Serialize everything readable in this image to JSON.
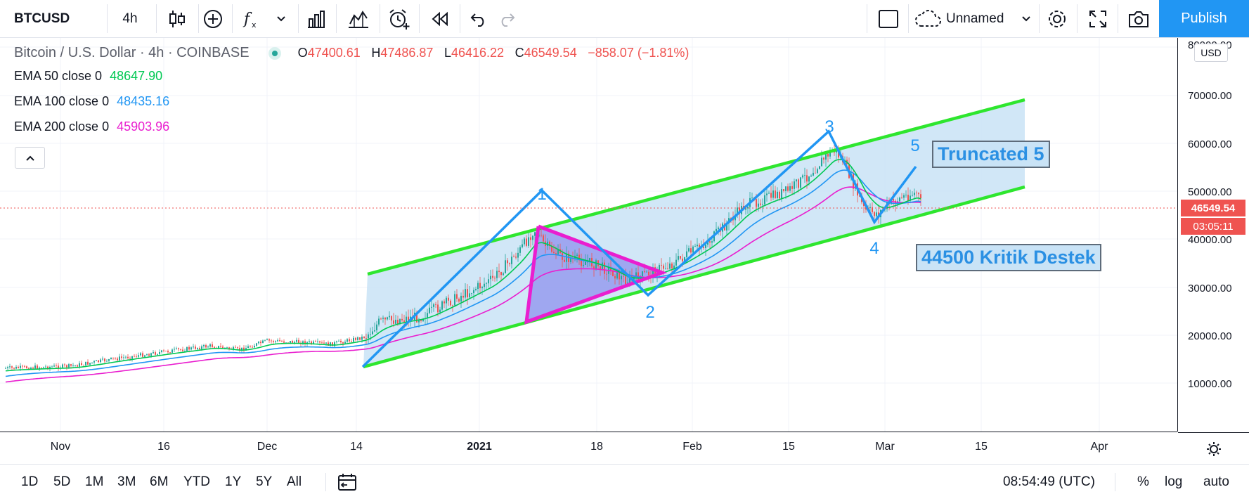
{
  "toolbar": {
    "symbol": "BTCUSD",
    "interval": "4h",
    "layout_name": "Unnamed",
    "publish_label": "Publish"
  },
  "legend": {
    "title": "Bitcoin / U.S. Dollar · 4h · COINBASE",
    "o_label": "O",
    "o_value": "47400.61",
    "h_label": "H",
    "h_value": "47486.87",
    "l_label": "L",
    "l_value": "46416.22",
    "c_label": "C",
    "c_value": "46549.54",
    "change": "−858.07 (−1.81%)",
    "indicators": [
      {
        "label": "EMA 50 close 0",
        "value": "48647.90",
        "color": "#00c853"
      },
      {
        "label": "EMA 100 close 0",
        "value": "48435.16",
        "color": "#2196f3"
      },
      {
        "label": "EMA 200 close 0",
        "value": "45903.96",
        "color": "#e91ecf"
      }
    ],
    "collapse_symbol": "^"
  },
  "price_axis": {
    "currency": "USD",
    "ticks": [
      "80000.00",
      "70000.00",
      "60000.00",
      "50000.00",
      "40000.00",
      "30000.00",
      "20000.00",
      "10000.00"
    ],
    "last_price": "46549.54",
    "countdown": "03:05:11"
  },
  "time_axis": {
    "ticks": [
      "Nov",
      "16",
      "Dec",
      "14",
      "2021",
      "18",
      "Feb",
      "15",
      "Mar",
      "15",
      "Apr"
    ]
  },
  "annotations": {
    "waves": [
      "1",
      "2",
      "3",
      "4",
      "5"
    ],
    "note_truncated": "Truncated 5",
    "note_support": "44500 Kritik Destek"
  },
  "bottom_bar": {
    "ranges": [
      "1D",
      "5D",
      "1M",
      "3M",
      "6M",
      "YTD",
      "1Y",
      "5Y",
      "All"
    ],
    "clock": "08:54:49 (UTC)",
    "percent": "%",
    "log": "log",
    "auto": "auto"
  },
  "colors": {
    "channel": "#2ee62e",
    "wave_line": "#2196f3",
    "triangle": "#e91ecf",
    "fill": "#c9e3f6",
    "down_badge": "#ef5350",
    "accent": "#2196f3"
  }
}
